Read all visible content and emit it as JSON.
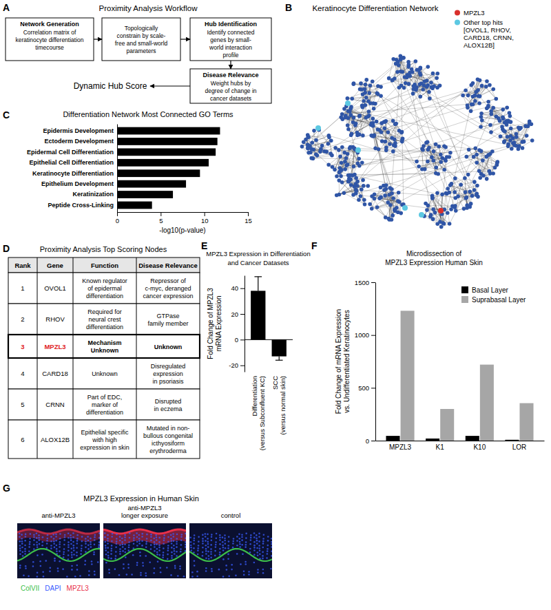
{
  "panel_labels": [
    "A",
    "B",
    "C",
    "D",
    "E",
    "F",
    "G"
  ],
  "workflow": {
    "title": "Proximity Analysis Workflow",
    "steps": [
      {
        "heading": "Network Generation",
        "text": [
          "Correlation matrix of",
          "keratinocyte differentiation",
          "timecourse"
        ]
      },
      {
        "text": [
          "Topologically",
          "constrain by scale-",
          "free and small-world",
          "parameters"
        ]
      },
      {
        "heading": "Hub Identification",
        "text": [
          "Identify connected",
          "genes by small-",
          "world interaction",
          "profile"
        ]
      },
      {
        "heading": "Disease Relevance",
        "text": [
          "Weight hubs by",
          "degree of change in",
          "cancer datasets"
        ]
      }
    ],
    "output": "Dynamic Hub Score"
  },
  "network": {
    "title": "Keratinocyte Differentiation Network",
    "node_color": "#2f55a6",
    "legend": [
      {
        "name": [
          "MPZL3"
        ],
        "color": "#d9302c"
      },
      {
        "name": [
          "Other top hits",
          "[OVOL1, RHOV,",
          "CARD18, CRNN,",
          "ALOX12B]"
        ],
        "color": "#5cc8e2"
      }
    ]
  },
  "chart_data": [
    {
      "panel": "C",
      "type": "bar",
      "orientation": "horizontal",
      "title": "Differentiation Network Most Connected GO Terms",
      "categories": [
        "Epidermis Development",
        "Ectoderm Development",
        "Epidermal Cell Differentiation",
        "Epithelial Cell Differentiation",
        "Keratinocyte Differentiation",
        "Epithelium Development",
        "Keratinization",
        "Peptide Cross-Linking"
      ],
      "values": [
        11.8,
        11.5,
        11.3,
        10.5,
        9.5,
        7.9,
        6.4,
        4.0
      ],
      "color": "#000000",
      "xlim": [
        0,
        15
      ],
      "xticks": [
        0,
        5,
        10,
        15
      ],
      "x_label": "-log10(p-value)"
    },
    {
      "panel": "E",
      "type": "bar",
      "title": [
        "MPZL3 Expression in Differentiation",
        "and Cancer Datasets"
      ],
      "categories": [
        "Differentiation (versus Subconfluent KC)",
        "SCC (versus normal skin)"
      ],
      "values": [
        38,
        -13
      ],
      "errors": [
        11,
        3
      ],
      "color": "#000000",
      "ylim": [
        -25,
        50
      ],
      "yticks": [
        -20,
        0,
        20,
        40
      ],
      "y_label": [
        "Fold Change of MPZL3",
        "mRNA Expression"
      ]
    },
    {
      "panel": "F",
      "type": "bar",
      "title": [
        "Microdissection of",
        "MPZL3 Expression Human Skin"
      ],
      "categories": [
        "MPZL3",
        "K1",
        "K10",
        "LOR"
      ],
      "series": [
        {
          "name": "Basal Layer",
          "color": "#000000",
          "values": [
            45,
            20,
            45,
            8
          ]
        },
        {
          "name": "Suprabasal Layer",
          "color": "#a6a6a6",
          "values": [
            1230,
            300,
            720,
            355
          ]
        }
      ],
      "ylim": [
        0,
        1500
      ],
      "yticks": [
        0,
        500,
        1000,
        1500
      ],
      "y_label": [
        "Fold Change  of mRNA Expression",
        "vs. Undifferentiated Keratinocytes"
      ],
      "legend": "top-right"
    }
  ],
  "table": {
    "title": "Proximity Analysis Top Scoring Nodes",
    "header": [
      "Rank",
      "Gene",
      "Function",
      "Disease Relevance"
    ],
    "highlight_color": "#e0201f",
    "rows": [
      {
        "rank": 1,
        "gene": "OVOL1",
        "function": [
          "Known regulator",
          "of epidermal",
          "differentiation"
        ],
        "disease": [
          "Repressor of",
          "c-myc, deranged",
          "cancer expression"
        ]
      },
      {
        "rank": 2,
        "gene": "RHOV",
        "function": [
          "Required for",
          "neural crest",
          "differentiation"
        ],
        "disease": [
          "GTPase",
          "family member"
        ]
      },
      {
        "rank": 3,
        "gene": "MPZL3",
        "function": [
          "Mechanism",
          "Unknown"
        ],
        "disease": [
          "Unknown"
        ],
        "highlighted": true
      },
      {
        "rank": 4,
        "gene": "CARD18",
        "function": [
          "Unknown"
        ],
        "disease": [
          "Disregulated",
          "expression",
          "in psoriasis"
        ]
      },
      {
        "rank": 5,
        "gene": "CRNN",
        "function": [
          "Part of EDC,",
          "marker of",
          "differentiation"
        ],
        "disease": [
          "Disrupted",
          "in eczema"
        ]
      },
      {
        "rank": 6,
        "gene": "ALOX12B",
        "function": [
          "Epithelial specific",
          "with high",
          "expression in skin"
        ],
        "disease": [
          "Mutated in non-",
          "bullous congenital",
          "icthyosiform",
          "erythroderma"
        ]
      }
    ]
  },
  "micrographs": {
    "title": "MPZL3 Expression in Human Skin",
    "images": [
      [
        "anti-MPZL3"
      ],
      [
        "anti-MPZL3",
        "longer exposure"
      ],
      [
        "control"
      ]
    ],
    "stains": [
      {
        "name": "ColVII",
        "color": "#3dbf4a"
      },
      {
        "name": "DAPI",
        "color": "#3a5cff"
      },
      {
        "name": "MPZL3",
        "color": "#e8304a"
      }
    ]
  }
}
